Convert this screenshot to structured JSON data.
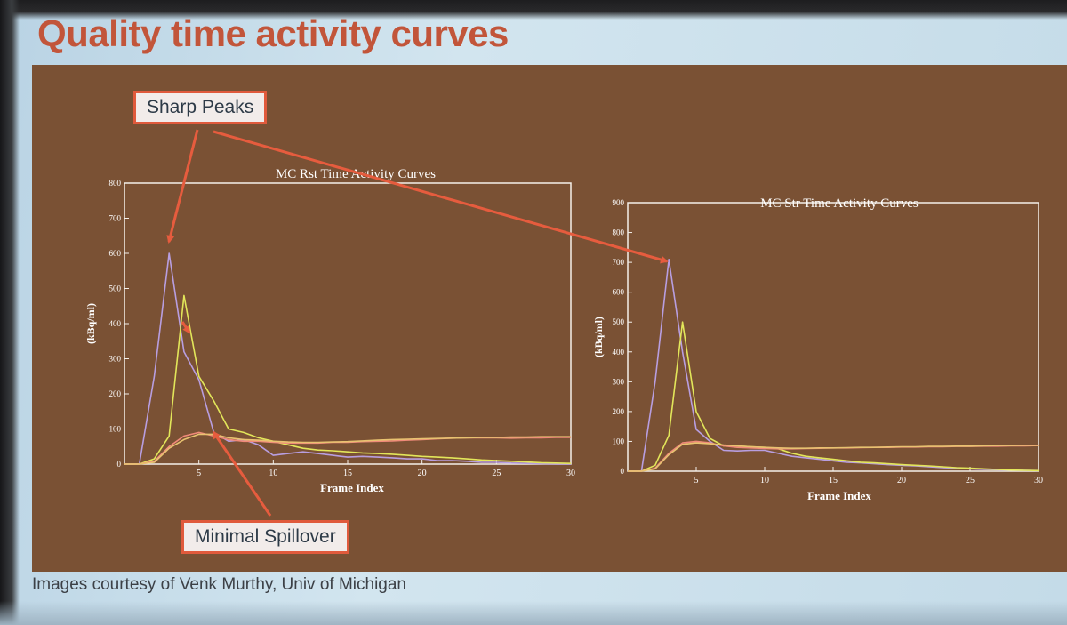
{
  "slide": {
    "title": "Quality time activity curves",
    "credit": "Images courtesy of Venk Murthy, Univ of Michigan",
    "callouts": {
      "sharp_peaks": "Sharp Peaks",
      "minimal_spillover": "Minimal Spillover"
    }
  },
  "colors": {
    "panel": "#7a5134",
    "title": "#c2553a",
    "callout_border": "#e05a3c",
    "arrow": "#e65c3e",
    "series": [
      "#b89ee0",
      "#e2e65a",
      "#f08a7a",
      "#e8c270"
    ]
  },
  "chart_data": [
    {
      "type": "line",
      "title": "MC Rst Time Activity Curves",
      "xlabel": "Frame Index",
      "ylabel": "(kBq/ml)",
      "xlim": [
        0,
        30
      ],
      "ylim": [
        0,
        800
      ],
      "xticks": [
        5,
        10,
        15,
        20,
        25,
        30
      ],
      "yticks": [
        0,
        100,
        200,
        300,
        400,
        500,
        600,
        700,
        800
      ],
      "x": [
        0,
        1,
        2,
        3,
        4,
        5,
        6,
        7,
        8,
        9,
        10,
        11,
        12,
        13,
        14,
        15,
        16,
        17,
        18,
        19,
        20,
        21,
        22,
        23,
        24,
        25,
        26,
        27,
        28,
        29,
        30
      ],
      "series": [
        {
          "values": [
            0,
            0,
            250,
            600,
            320,
            240,
            90,
            65,
            70,
            55,
            25,
            30,
            35,
            30,
            25,
            20,
            22,
            20,
            18,
            15,
            15,
            10,
            10,
            8,
            5,
            5,
            3,
            2,
            1,
            0,
            0
          ]
        },
        {
          "values": [
            0,
            0,
            15,
            80,
            480,
            250,
            180,
            100,
            90,
            75,
            65,
            55,
            45,
            40,
            38,
            35,
            32,
            30,
            28,
            25,
            22,
            20,
            18,
            15,
            12,
            10,
            8,
            6,
            4,
            3,
            2
          ]
        },
        {
          "values": [
            0,
            0,
            8,
            50,
            80,
            90,
            80,
            70,
            65,
            65,
            62,
            60,
            60,
            60,
            62,
            62,
            64,
            65,
            66,
            68,
            70,
            72,
            74,
            75,
            75,
            75,
            74,
            75,
            75,
            76,
            76
          ]
        },
        {
          "values": [
            0,
            0,
            5,
            45,
            70,
            85,
            85,
            75,
            70,
            68,
            65,
            63,
            62,
            62,
            63,
            64,
            66,
            68,
            70,
            71,
            72,
            73,
            74,
            75,
            76,
            76,
            77,
            77,
            78,
            78,
            78
          ]
        }
      ],
      "annotations": [
        {
          "text": "Sharp Peaks",
          "x": 3,
          "y": 600
        },
        {
          "text": "Minimal Spillover",
          "x": 5,
          "y": 90
        }
      ]
    },
    {
      "type": "line",
      "title": "MC Str Time Activity Curves",
      "xlabel": "Frame Index",
      "ylabel": "(kBq/ml)",
      "xlim": [
        0,
        30
      ],
      "ylim": [
        0,
        900
      ],
      "xticks": [
        5,
        10,
        15,
        20,
        25,
        30
      ],
      "yticks": [
        0,
        100,
        200,
        300,
        400,
        500,
        600,
        700,
        800,
        900
      ],
      "x": [
        0,
        1,
        2,
        3,
        4,
        5,
        6,
        7,
        8,
        9,
        10,
        11,
        12,
        13,
        14,
        15,
        16,
        17,
        18,
        19,
        20,
        21,
        22,
        23,
        24,
        25,
        26,
        27,
        28,
        29,
        30
      ],
      "series": [
        {
          "values": [
            0,
            0,
            300,
            710,
            400,
            140,
            100,
            70,
            68,
            70,
            70,
            60,
            50,
            45,
            40,
            35,
            30,
            28,
            25,
            22,
            20,
            18,
            15,
            12,
            10,
            8,
            6,
            5,
            4,
            3,
            2
          ]
        },
        {
          "values": [
            0,
            0,
            20,
            120,
            500,
            200,
            110,
            85,
            85,
            82,
            80,
            75,
            60,
            50,
            45,
            40,
            35,
            30,
            28,
            25,
            22,
            20,
            18,
            15,
            12,
            10,
            8,
            6,
            4,
            3,
            2
          ]
        },
        {
          "values": [
            0,
            0,
            10,
            60,
            95,
            100,
            95,
            85,
            80,
            78,
            76,
            75,
            75,
            76,
            77,
            78,
            78,
            79,
            80,
            80,
            81,
            81,
            82,
            82,
            83,
            83,
            84,
            84,
            85,
            85,
            86
          ]
        },
        {
          "values": [
            0,
            0,
            8,
            55,
            90,
            95,
            92,
            88,
            85,
            82,
            80,
            78,
            77,
            77,
            78,
            78,
            79,
            80,
            80,
            81,
            82,
            82,
            83,
            83,
            84,
            84,
            85,
            86,
            86,
            87,
            87
          ]
        }
      ],
      "annotations": [
        {
          "text": "Sharp Peaks",
          "x": 3,
          "y": 710
        }
      ]
    }
  ]
}
